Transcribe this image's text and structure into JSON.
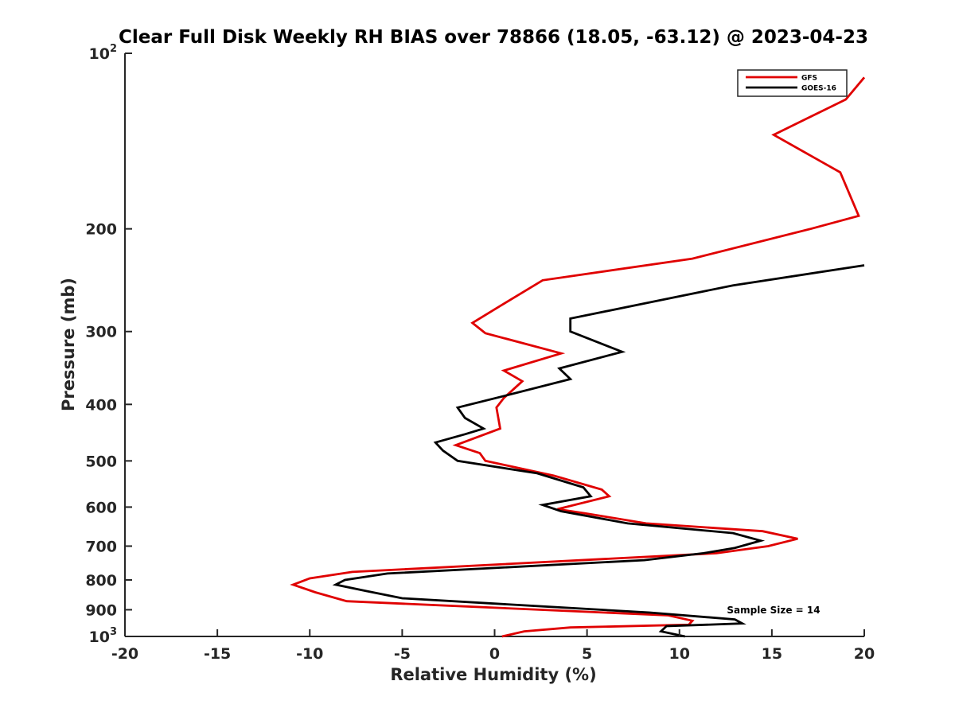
{
  "chart_data": {
    "type": "line",
    "title": "Clear Full Disk Weekly RH BIAS over 78866 (18.05, -63.12) @ 2023-04-23",
    "xlabel": "Relative Humidity (%)",
    "ylabel": "Pressure (mb)",
    "xlim": [
      -20,
      20
    ],
    "ylim": [
      100,
      1000
    ],
    "y_scale": "log",
    "y_reversed": true,
    "grid": false,
    "legend_position": "top-right",
    "x_ticks": [
      "-20",
      "-15",
      "-10",
      "-5",
      "0",
      "5",
      "10",
      "15",
      "20"
    ],
    "y_ticks": [
      {
        "value": 100,
        "base": "10",
        "exp": "2"
      },
      {
        "value": 200,
        "label": "200"
      },
      {
        "value": 300,
        "label": "300"
      },
      {
        "value": 400,
        "label": "400"
      },
      {
        "value": 500,
        "label": "500"
      },
      {
        "value": 600,
        "label": "600"
      },
      {
        "value": 700,
        "label": "700"
      },
      {
        "value": 800,
        "label": "800"
      },
      {
        "value": 900,
        "label": "900"
      },
      {
        "value": 1000,
        "base": "10",
        "exp": "3"
      }
    ],
    "series": [
      {
        "name": "GFS",
        "color": "#e00000",
        "points": [
          [
            20.0,
            110
          ],
          [
            19.0,
            120
          ],
          [
            15.1,
            138
          ],
          [
            18.7,
            160
          ],
          [
            19.7,
            190
          ],
          [
            17.1,
            200
          ],
          [
            10.7,
            225
          ],
          [
            2.6,
            245
          ],
          [
            0.4,
            270
          ],
          [
            -1.2,
            290
          ],
          [
            -0.5,
            302
          ],
          [
            3.6,
            327
          ],
          [
            0.5,
            350
          ],
          [
            1.5,
            365
          ],
          [
            0.5,
            390
          ],
          [
            0.1,
            405
          ],
          [
            0.3,
            440
          ],
          [
            -2.1,
            470
          ],
          [
            -0.8,
            485
          ],
          [
            -0.5,
            500
          ],
          [
            3.2,
            530
          ],
          [
            5.8,
            560
          ],
          [
            6.2,
            575
          ],
          [
            3.4,
            605
          ],
          [
            4.9,
            615
          ],
          [
            8.2,
            640
          ],
          [
            14.5,
            660
          ],
          [
            16.4,
            680
          ],
          [
            14.8,
            700
          ],
          [
            12.0,
            720
          ],
          [
            -7.7,
            775
          ],
          [
            -10.0,
            795
          ],
          [
            -10.9,
            815
          ],
          [
            -9.7,
            840
          ],
          [
            -8.0,
            870
          ],
          [
            9.4,
            920
          ],
          [
            10.7,
            940
          ],
          [
            10.5,
            955
          ],
          [
            4.1,
            965
          ],
          [
            1.6,
            980
          ],
          [
            0.4,
            1000
          ]
        ]
      },
      {
        "name": "GOES-16",
        "color": "#000000",
        "points": [
          [
            20.0,
            231
          ],
          [
            12.9,
            250
          ],
          [
            4.1,
            285
          ],
          [
            4.1,
            300
          ],
          [
            6.9,
            325
          ],
          [
            3.5,
            347
          ],
          [
            4.1,
            362
          ],
          [
            0.5,
            387
          ],
          [
            -2.0,
            405
          ],
          [
            -1.6,
            422
          ],
          [
            -0.6,
            440
          ],
          [
            -1.6,
            450
          ],
          [
            -3.2,
            465
          ],
          [
            -2.8,
            480
          ],
          [
            -2.0,
            500
          ],
          [
            2.3,
            525
          ],
          [
            4.8,
            555
          ],
          [
            5.2,
            575
          ],
          [
            2.6,
            595
          ],
          [
            3.6,
            610
          ],
          [
            7.2,
            640
          ],
          [
            12.9,
            665
          ],
          [
            14.4,
            685
          ],
          [
            13.0,
            705
          ],
          [
            11.3,
            720
          ],
          [
            8.1,
            740
          ],
          [
            -5.8,
            780
          ],
          [
            -8.1,
            800
          ],
          [
            -8.6,
            815
          ],
          [
            -7.0,
            835
          ],
          [
            -5.0,
            860
          ],
          [
            8.4,
            910
          ],
          [
            13.0,
            935
          ],
          [
            13.4,
            950
          ],
          [
            9.3,
            960
          ],
          [
            9.0,
            980
          ],
          [
            10.3,
            1000
          ]
        ]
      }
    ],
    "annotations": [
      "Sample Size = 14"
    ]
  }
}
